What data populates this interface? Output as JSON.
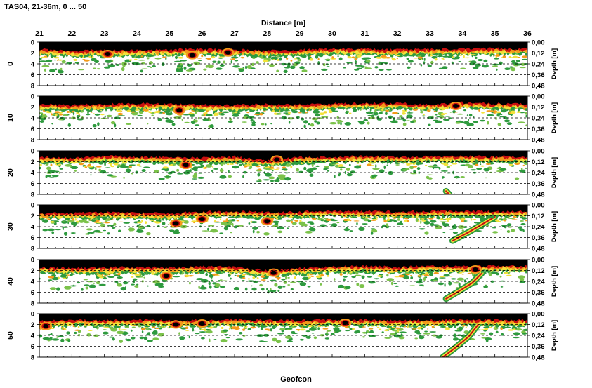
{
  "page": {
    "title": "TAS04, 21-36m, 0 ... 50",
    "footer": "Geofcon"
  },
  "chart_data": {
    "type": "heatmap",
    "title": "TAS04, 21-36m, 0 ... 50",
    "xlabel": "Distance [m]",
    "xlim": [
      21,
      36
    ],
    "x_ticks": [
      "21",
      "22",
      "23",
      "24",
      "25",
      "26",
      "27",
      "28",
      "29",
      "30",
      "31",
      "32",
      "33",
      "34",
      "35",
      "36"
    ],
    "left_ticks": [
      "0",
      "2",
      "4",
      "6",
      "8"
    ],
    "right_ylabel": "Depth [m]",
    "right_ticks": [
      "0,00",
      "0,12",
      "0,24",
      "0,36",
      "0,48"
    ],
    "grid": "dashed horizontal",
    "colors": [
      "#000000",
      "#c81010",
      "#f39a1a",
      "#f2e23a",
      "#7bc24a",
      "#2e9a3e"
    ],
    "panels": [
      {
        "label": "0",
        "surface": [
          [
            21,
            1.3
          ],
          [
            22,
            1.6
          ],
          [
            23,
            1.5
          ],
          [
            24,
            1.5
          ],
          [
            25,
            1.4
          ],
          [
            26,
            1.3
          ],
          [
            27,
            1.4
          ],
          [
            28,
            1.6
          ],
          [
            29,
            1.5
          ],
          [
            30,
            1.2
          ],
          [
            31,
            1.3
          ],
          [
            32,
            1.4
          ],
          [
            33,
            1.3
          ],
          [
            34,
            1.3
          ],
          [
            35,
            1.2
          ],
          [
            36,
            1.2
          ]
        ],
        "dark_blobs": [
          [
            23.1,
            2.2
          ],
          [
            25.7,
            2.4
          ],
          [
            26.8,
            1.9
          ]
        ],
        "deep_feature": []
      },
      {
        "label": "10",
        "surface": [
          [
            21,
            1.5
          ],
          [
            22,
            1.7
          ],
          [
            23,
            1.5
          ],
          [
            24,
            1.4
          ],
          [
            25,
            1.4
          ],
          [
            26,
            1.6
          ],
          [
            27,
            1.7
          ],
          [
            28,
            1.5
          ],
          [
            29,
            1.6
          ],
          [
            30,
            1.4
          ],
          [
            31,
            1.3
          ],
          [
            32,
            1.3
          ],
          [
            33,
            1.6
          ],
          [
            34,
            1.2
          ],
          [
            35,
            1.4
          ],
          [
            36,
            1.5
          ]
        ],
        "dark_blobs": [
          [
            25.3,
            2.6
          ],
          [
            33.8,
            1.8
          ]
        ],
        "deep_feature": []
      },
      {
        "label": "20",
        "surface": [
          [
            21,
            1.2
          ],
          [
            22,
            1.3
          ],
          [
            23,
            1.0
          ],
          [
            24,
            1.1
          ],
          [
            25,
            1.2
          ],
          [
            26,
            1.3
          ],
          [
            27,
            1.1
          ],
          [
            28,
            1.8
          ],
          [
            29,
            1.2
          ],
          [
            30,
            1.1
          ],
          [
            31,
            1.0
          ],
          [
            32,
            1.1
          ],
          [
            33,
            1.1
          ],
          [
            34,
            1.0
          ],
          [
            35,
            1.1
          ],
          [
            36,
            1.1
          ]
        ],
        "dark_blobs": [
          [
            25.5,
            2.6
          ],
          [
            28.3,
            1.6
          ]
        ],
        "deep_feature": [
          [
            33.5,
            7.4
          ],
          [
            33.6,
            8.0
          ]
        ]
      },
      {
        "label": "30",
        "surface": [
          [
            21,
            1.6
          ],
          [
            22,
            1.5
          ],
          [
            23,
            1.4
          ],
          [
            24,
            1.5
          ],
          [
            25,
            1.6
          ],
          [
            26,
            1.3
          ],
          [
            27,
            1.2
          ],
          [
            28,
            1.4
          ],
          [
            29,
            1.3
          ],
          [
            30,
            1.1
          ],
          [
            31,
            1.2
          ],
          [
            32,
            1.3
          ],
          [
            33,
            1.2
          ],
          [
            34,
            1.1
          ],
          [
            35,
            1.2
          ],
          [
            36,
            1.1
          ]
        ],
        "dark_blobs": [
          [
            25.2,
            3.4
          ],
          [
            26.0,
            2.6
          ],
          [
            28.0,
            3.0
          ]
        ],
        "deep_feature": [
          [
            33.7,
            6.6
          ],
          [
            34.2,
            5.0
          ],
          [
            34.6,
            3.6
          ],
          [
            35.0,
            2.2
          ]
        ]
      },
      {
        "label": "40",
        "surface": [
          [
            21,
            1.4
          ],
          [
            22,
            1.6
          ],
          [
            23,
            1.5
          ],
          [
            24,
            1.4
          ],
          [
            25,
            1.5
          ],
          [
            26,
            1.3
          ],
          [
            27,
            1.4
          ],
          [
            28,
            2.0
          ],
          [
            29,
            1.6
          ],
          [
            30,
            1.3
          ],
          [
            31,
            1.2
          ],
          [
            32,
            1.4
          ],
          [
            33,
            1.2
          ],
          [
            34,
            1.3
          ],
          [
            35,
            1.1
          ],
          [
            36,
            1.2
          ]
        ],
        "dark_blobs": [
          [
            24.9,
            3.0
          ],
          [
            28.2,
            2.4
          ],
          [
            34.4,
            1.8
          ]
        ],
        "deep_feature": [
          [
            33.5,
            7.2
          ],
          [
            33.9,
            5.8
          ],
          [
            34.3,
            4.3
          ],
          [
            34.6,
            2.5
          ]
        ]
      },
      {
        "label": "50",
        "surface": [
          [
            21,
            1.3
          ],
          [
            22,
            1.2
          ],
          [
            23,
            1.3
          ],
          [
            24,
            1.1
          ],
          [
            25,
            1.3
          ],
          [
            26,
            1.2
          ],
          [
            27,
            1.1
          ],
          [
            28,
            1.2
          ],
          [
            29,
            1.3
          ],
          [
            30,
            1.1
          ],
          [
            31,
            1.2
          ],
          [
            32,
            1.3
          ],
          [
            33,
            1.2
          ],
          [
            34,
            1.1
          ],
          [
            35,
            1.2
          ],
          [
            36,
            1.2
          ]
        ],
        "dark_blobs": [
          [
            21.2,
            2.3
          ],
          [
            25.2,
            2.0
          ],
          [
            26.0,
            1.8
          ],
          [
            30.4,
            1.7
          ]
        ],
        "deep_feature": [
          [
            33.4,
            8.0
          ],
          [
            33.8,
            6.2
          ],
          [
            34.2,
            4.2
          ],
          [
            34.5,
            1.9
          ]
        ]
      }
    ]
  }
}
